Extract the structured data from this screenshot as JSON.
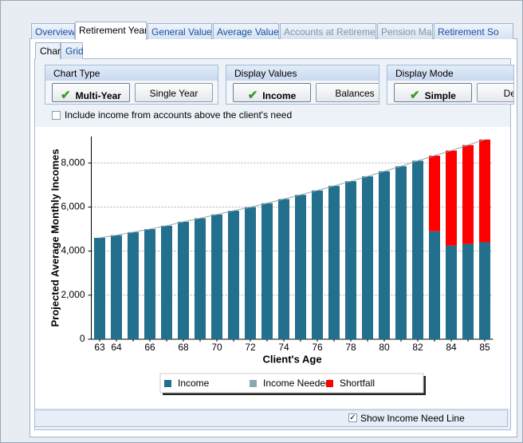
{
  "tabs": [
    "Overview",
    "Retirement Years",
    "General Values",
    "Average Values",
    "Accounts at Retirement",
    "Pension Max",
    "Retirement So"
  ],
  "subtabs": [
    "Chart",
    "Grid"
  ],
  "groups": [
    {
      "title": "Chart Type",
      "buttons": [
        "Multi-Year",
        "Single Year"
      ]
    },
    {
      "title": "Display Values",
      "buttons": [
        "Income",
        "Balances"
      ]
    },
    {
      "title": "Display Mode",
      "buttons": [
        "Simple",
        "Detail"
      ]
    }
  ],
  "include_checkbox": "Include income from accounts above the client's need",
  "need_line_checkbox": "Show Income Need Line",
  "chart_data": {
    "type": "bar",
    "stacked": true,
    "x_label": "Client's Age",
    "y_label": "Projected Average Monthly Incomes",
    "categories": [
      "63",
      "64",
      null,
      "66",
      null,
      "68",
      null,
      "70",
      null,
      "72",
      null,
      "74",
      null,
      "76",
      null,
      "78",
      null,
      "80",
      null,
      "82",
      null,
      "84",
      null,
      "85"
    ],
    "series": [
      {
        "name": "Income",
        "kind": "bar",
        "color": "#236f8e",
        "values": [
          4600,
          4720,
          4860,
          5000,
          5150,
          5330,
          5490,
          5660,
          5830,
          5990,
          6170,
          6360,
          6550,
          6750,
          6960,
          7170,
          7390,
          7620,
          7850,
          8100,
          4900,
          4250,
          4330,
          4400
        ]
      },
      {
        "name": "Income Needed",
        "kind": "line",
        "color": "#8fa7ae",
        "values": [
          4600,
          4720,
          4860,
          5000,
          5150,
          5330,
          5490,
          5660,
          5830,
          5990,
          6170,
          6360,
          6550,
          6750,
          6960,
          7170,
          7390,
          7620,
          7850,
          8100,
          8330,
          8560,
          8810,
          9060
        ]
      },
      {
        "name": "Shortfall",
        "kind": "bar",
        "color": "#ff0000",
        "values": [
          null,
          null,
          null,
          null,
          null,
          null,
          null,
          null,
          null,
          null,
          null,
          null,
          null,
          null,
          null,
          null,
          null,
          null,
          null,
          null,
          3430,
          4310,
          4480,
          4660
        ]
      }
    ],
    "ylim": [
      0,
      9200
    ],
    "yticks": [
      0,
      {
        "value": 2000,
        "label": "2,000"
      },
      {
        "value": 4000,
        "label": "4,000"
      },
      {
        "value": 6000,
        "label": "6,000"
      },
      {
        "value": 8000,
        "label": "8,000"
      }
    ],
    "grid": true
  }
}
